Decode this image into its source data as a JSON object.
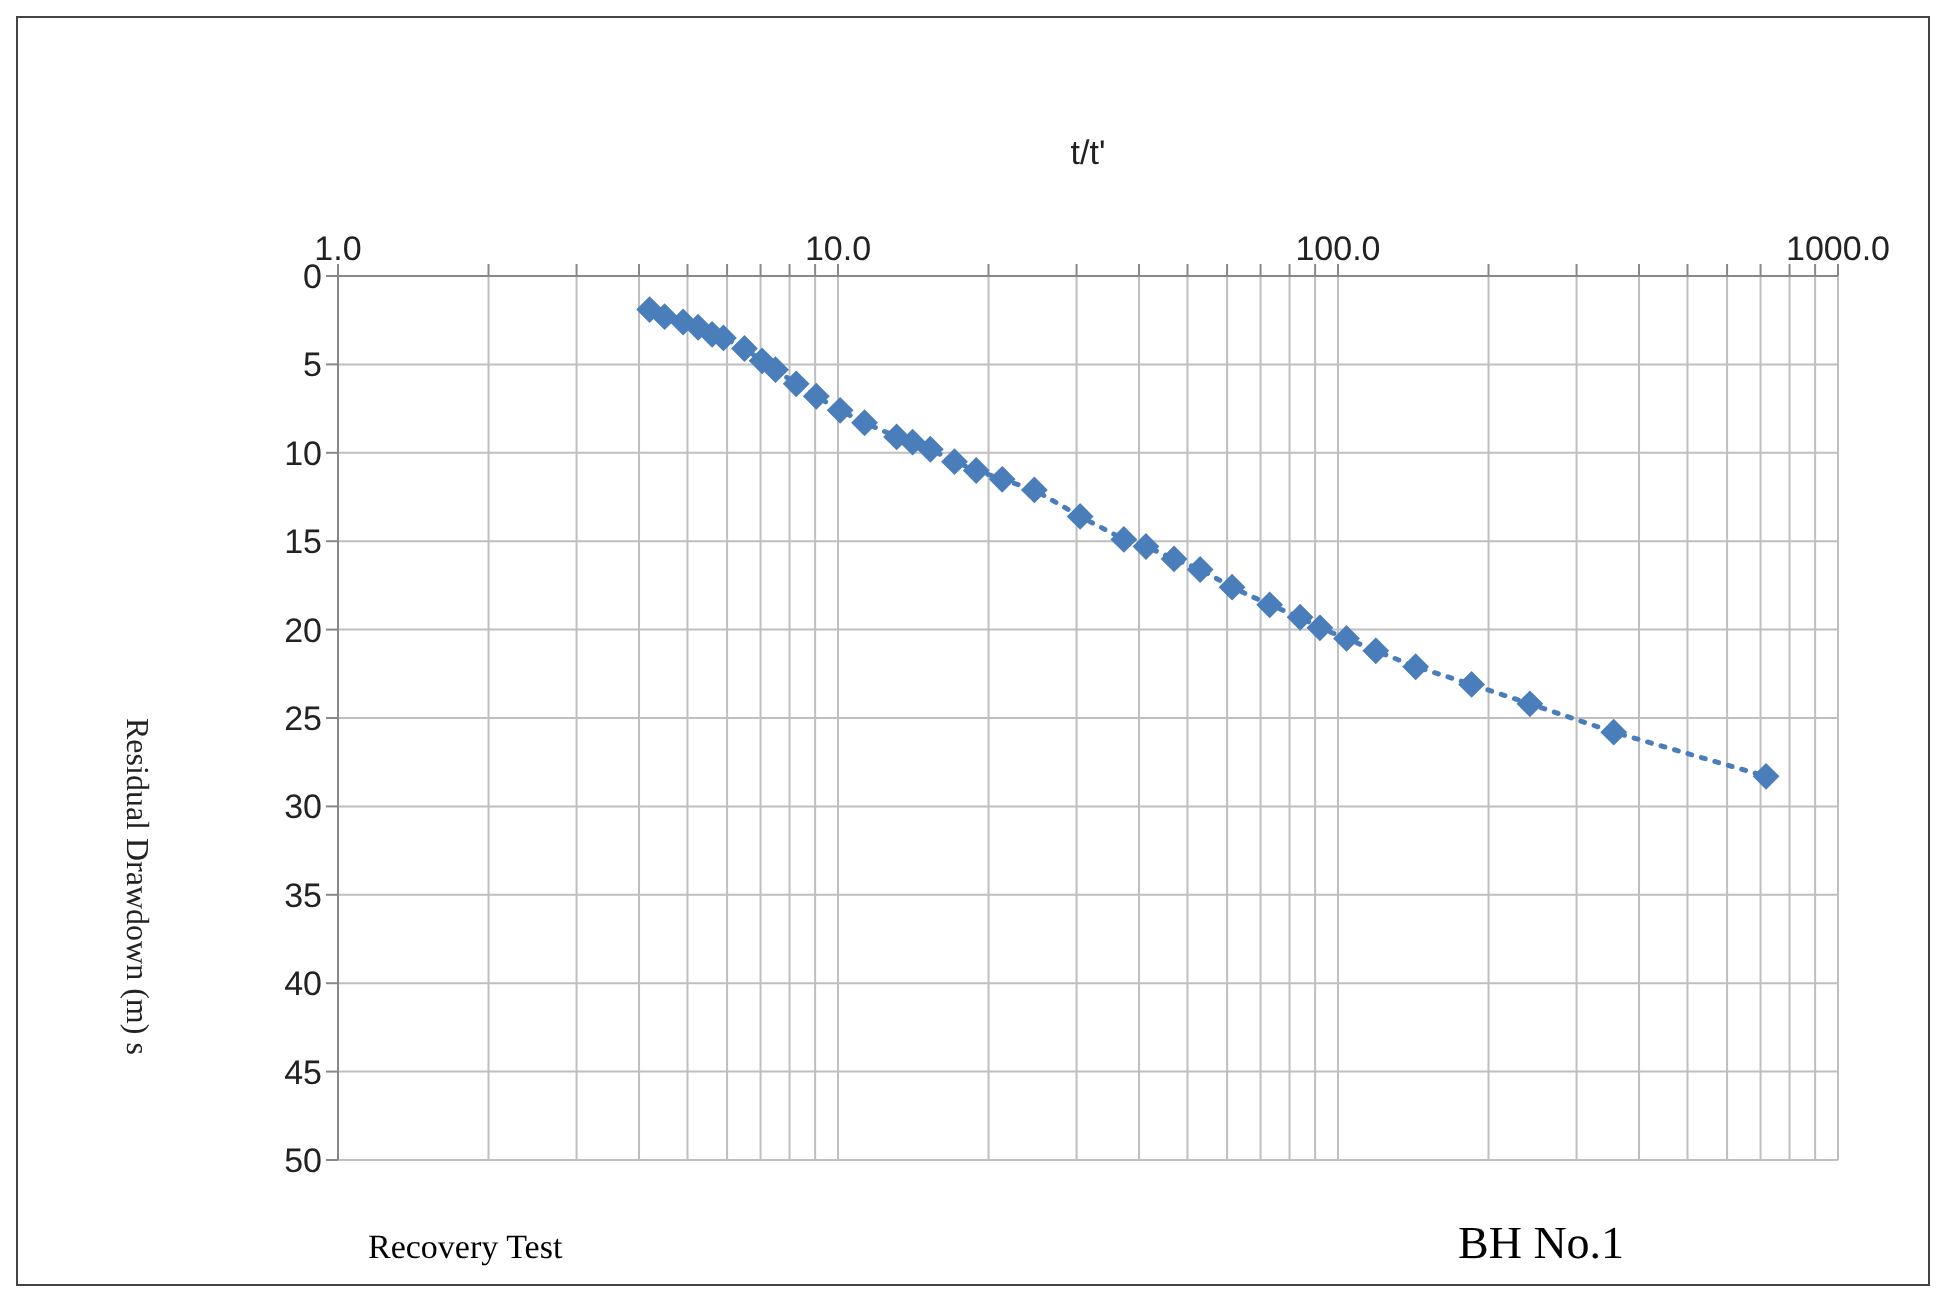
{
  "chart_data": {
    "type": "line",
    "xlabel": "t/t'",
    "ylabel": "Residual Drawdown  (m)  s",
    "annotations": [
      "Recovery  Test",
      "BH No.1"
    ],
    "log": "x",
    "grid": true,
    "marker": "diamond",
    "line_style": "dotted",
    "xlim": [
      1,
      1000
    ],
    "ylim": [
      50,
      0
    ],
    "xticks": [
      {
        "value": 1,
        "label": "1.0"
      },
      {
        "value": 2,
        "label": null
      },
      {
        "value": 3,
        "label": null
      },
      {
        "value": 4,
        "label": null
      },
      {
        "value": 5,
        "label": null
      },
      {
        "value": 6,
        "label": null
      },
      {
        "value": 7,
        "label": null
      },
      {
        "value": 8,
        "label": null
      },
      {
        "value": 9,
        "label": null
      },
      {
        "value": 10,
        "label": "10.0"
      },
      {
        "value": 20,
        "label": null
      },
      {
        "value": 30,
        "label": null
      },
      {
        "value": 40,
        "label": null
      },
      {
        "value": 50,
        "label": null
      },
      {
        "value": 60,
        "label": null
      },
      {
        "value": 70,
        "label": null
      },
      {
        "value": 80,
        "label": null
      },
      {
        "value": 90,
        "label": null
      },
      {
        "value": 100,
        "label": "100.0"
      },
      {
        "value": 200,
        "label": null
      },
      {
        "value": 300,
        "label": null
      },
      {
        "value": 400,
        "label": null
      },
      {
        "value": 500,
        "label": null
      },
      {
        "value": 600,
        "label": null
      },
      {
        "value": 700,
        "label": null
      },
      {
        "value": 800,
        "label": null
      },
      {
        "value": 900,
        "label": null
      },
      {
        "value": 1000,
        "label": "1000.0"
      }
    ],
    "yticks": [
      0,
      5,
      10,
      15,
      20,
      25,
      30,
      35,
      40,
      45,
      50
    ],
    "x": [
      4.2,
      4.5,
      4.9,
      5.25,
      5.6,
      5.9,
      6.5,
      7.05,
      7.5,
      8.25,
      9.05,
      10.1,
      11.3,
      13.1,
      14.1,
      15.3,
      17.1,
      18.9,
      21.3,
      24.7,
      30.5,
      37.3,
      41.3,
      47,
      53,
      61.4,
      73,
      84,
      92,
      104,
      119,
      143,
      185,
      242,
      356,
      718
    ],
    "series": [
      {
        "color": "#4a7ebb",
        "values": [
          1.9,
          2.3,
          2.6,
          2.9,
          3.3,
          3.5,
          4.1,
          4.8,
          5.3,
          6.1,
          6.8,
          7.6,
          8.3,
          9.1,
          9.4,
          9.8,
          10.5,
          11,
          11.5,
          12.1,
          13.6,
          14.9,
          15.3,
          16,
          16.6,
          17.6,
          18.6,
          19.3,
          19.9,
          20.5,
          21.2,
          22.1,
          23.1,
          24.2,
          25.8,
          28.3
        ]
      }
    ]
  }
}
